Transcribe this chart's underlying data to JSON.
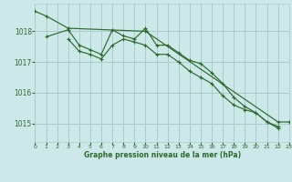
{
  "title": "Graphe pression niveau de la mer (hPa)",
  "background_color": "#cce8e8",
  "grid_color": "#aacccc",
  "line_color": "#2d6a2d",
  "x_min": 0,
  "x_max": 23,
  "y_min": 1014.4,
  "y_max": 1018.9,
  "yticks": [
    1015,
    1016,
    1017,
    1018
  ],
  "xticks": [
    0,
    1,
    2,
    3,
    4,
    5,
    6,
    7,
    8,
    9,
    10,
    11,
    12,
    13,
    14,
    15,
    16,
    17,
    18,
    19,
    20,
    21,
    22,
    23
  ],
  "series1_x": [
    0,
    1,
    3,
    10,
    22,
    23
  ],
  "series1_y": [
    1018.65,
    1018.5,
    1018.1,
    1018.0,
    1015.05,
    1015.05
  ],
  "series2_x": [
    1,
    3,
    4,
    5,
    6,
    7,
    8,
    9,
    10,
    11,
    12,
    13,
    14,
    15,
    16,
    17,
    18,
    19,
    20,
    21,
    22
  ],
  "series2_y": [
    1017.82,
    1018.05,
    1017.55,
    1017.4,
    1017.25,
    1018.05,
    1017.85,
    1017.75,
    1018.1,
    1017.55,
    1017.55,
    1017.3,
    1017.05,
    1016.95,
    1016.65,
    1016.3,
    1015.85,
    1015.55,
    1015.35,
    1015.05,
    1014.85
  ],
  "series3_x": [
    3,
    4,
    5,
    6,
    7,
    8,
    9,
    10,
    11,
    12,
    13,
    14,
    15,
    16,
    17,
    18,
    19,
    20,
    21,
    22
  ],
  "series3_y": [
    1017.75,
    1017.35,
    1017.25,
    1017.1,
    1017.55,
    1017.75,
    1017.65,
    1017.55,
    1017.25,
    1017.25,
    1017.0,
    1016.7,
    1016.5,
    1016.3,
    1015.9,
    1015.6,
    1015.45,
    1015.35,
    1015.05,
    1014.9
  ]
}
